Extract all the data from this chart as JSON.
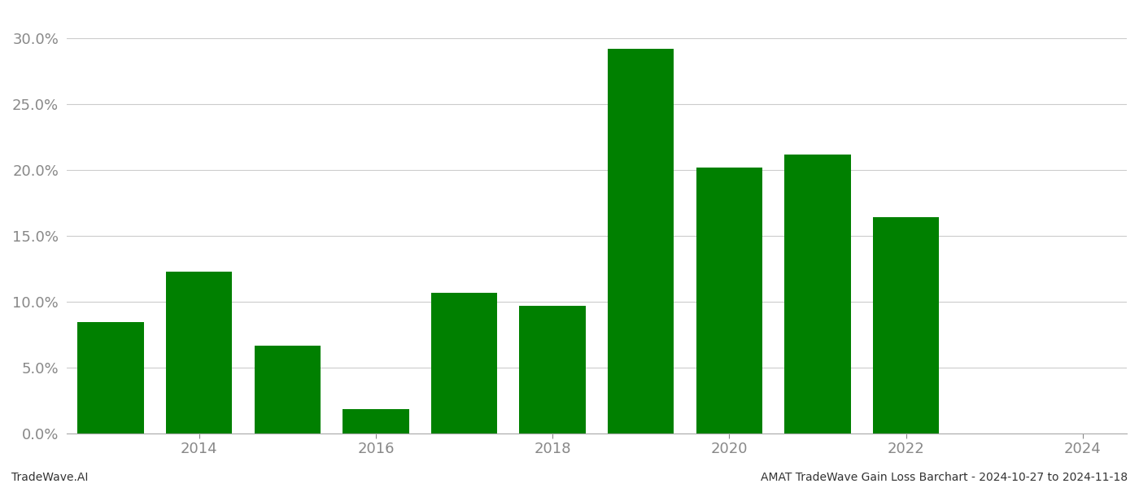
{
  "years": [
    2013,
    2014,
    2015,
    2016,
    2017,
    2018,
    2019,
    2020,
    2021,
    2022,
    2023
  ],
  "values": [
    0.0845,
    0.1225,
    0.0665,
    0.018,
    0.107,
    0.097,
    0.292,
    0.202,
    0.212,
    0.164,
    0.0
  ],
  "bar_color": "#008000",
  "background_color": "#ffffff",
  "grid_color": "#cccccc",
  "ylabel_color": "#888888",
  "xlabel_color": "#888888",
  "ylim": [
    0.0,
    0.32
  ],
  "yticks": [
    0.0,
    0.05,
    0.1,
    0.15,
    0.2,
    0.25,
    0.3
  ],
  "xtick_positions": [
    2014,
    2016,
    2018,
    2020,
    2022,
    2024
  ],
  "xlim": [
    2012.5,
    2024.5
  ],
  "footer_left": "TradeWave.AI",
  "footer_right": "AMAT TradeWave Gain Loss Barchart - 2024-10-27 to 2024-11-18",
  "footer_fontsize": 10,
  "tick_fontsize": 13,
  "bar_width": 0.75
}
